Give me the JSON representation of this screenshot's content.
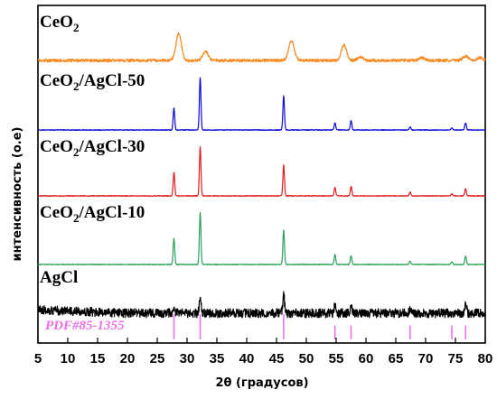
{
  "chart_data": {
    "type": "line",
    "xlabel": "2θ (градусов)",
    "ylabel": "интенсивность (о.е)",
    "xlim": [
      5,
      80
    ],
    "x_ticks": [
      5,
      10,
      15,
      20,
      25,
      30,
      35,
      40,
      45,
      50,
      55,
      60,
      65,
      70,
      75,
      80
    ],
    "grid": false,
    "legend": "labels above each curve",
    "series": [
      {
        "name": "CeO2",
        "label_main": "CeO",
        "label_sub": "2",
        "label_rest": "",
        "color": "#f5891f",
        "noise": 1.6,
        "peaks": [
          {
            "x": 28.6,
            "h": 0.75
          },
          {
            "x": 33.1,
            "h": 0.25
          },
          {
            "x": 47.5,
            "h": 0.55
          },
          {
            "x": 56.3,
            "h": 0.42
          },
          {
            "x": 59.1,
            "h": 0.1
          },
          {
            "x": 69.4,
            "h": 0.08
          },
          {
            "x": 76.7,
            "h": 0.12
          },
          {
            "x": 79.1,
            "h": 0.08
          }
        ]
      },
      {
        "name": "CeO2/AgCl-50",
        "label_main": "CeO",
        "label_sub": "2",
        "label_rest": "/AgCl-50",
        "color": "#0b0bd6",
        "noise": 0.4,
        "peaks": [
          {
            "x": 27.8,
            "h": 0.42
          },
          {
            "x": 32.2,
            "h": 1.0
          },
          {
            "x": 46.2,
            "h": 0.65
          },
          {
            "x": 54.8,
            "h": 0.14
          },
          {
            "x": 57.5,
            "h": 0.18
          },
          {
            "x": 67.4,
            "h": 0.06
          },
          {
            "x": 74.4,
            "h": 0.04
          },
          {
            "x": 76.7,
            "h": 0.14
          }
        ]
      },
      {
        "name": "CeO2/AgCl-30",
        "label_main": "CeO",
        "label_sub": "2",
        "label_rest": "/AgCl-30",
        "color": "#e01a1a",
        "noise": 0.4,
        "peaks": [
          {
            "x": 27.8,
            "h": 0.48
          },
          {
            "x": 32.2,
            "h": 1.0
          },
          {
            "x": 46.2,
            "h": 0.63
          },
          {
            "x": 54.8,
            "h": 0.17
          },
          {
            "x": 57.5,
            "h": 0.19
          },
          {
            "x": 67.4,
            "h": 0.08
          },
          {
            "x": 74.4,
            "h": 0.04
          },
          {
            "x": 76.7,
            "h": 0.15
          }
        ]
      },
      {
        "name": "CeO2/AgCl-10",
        "label_main": "CeO",
        "label_sub": "2",
        "label_rest": "/AgCl-10",
        "color": "#2ca05a",
        "noise": 0.4,
        "peaks": [
          {
            "x": 27.8,
            "h": 0.5
          },
          {
            "x": 32.2,
            "h": 1.0
          },
          {
            "x": 46.2,
            "h": 0.65
          },
          {
            "x": 54.8,
            "h": 0.19
          },
          {
            "x": 57.5,
            "h": 0.17
          },
          {
            "x": 67.4,
            "h": 0.06
          },
          {
            "x": 74.4,
            "h": 0.05
          },
          {
            "x": 76.7,
            "h": 0.16
          }
        ]
      },
      {
        "name": "AgCl",
        "label_main": "AgCl",
        "label_sub": "",
        "label_rest": "",
        "color": "#000000",
        "noise": 5.0,
        "peaks": [
          {
            "x": 27.8,
            "h": 0.18
          },
          {
            "x": 32.2,
            "h": 0.45
          },
          {
            "x": 46.2,
            "h": 0.5
          },
          {
            "x": 54.8,
            "h": 0.2
          },
          {
            "x": 57.5,
            "h": 0.22
          },
          {
            "x": 67.4,
            "h": 0.1
          },
          {
            "x": 76.7,
            "h": 0.3
          }
        ]
      }
    ],
    "reference": {
      "name": "PDF#85-1355",
      "color": "#ee6fe8",
      "lines": [
        {
          "x": 27.8,
          "h": 1.0
        },
        {
          "x": 32.2,
          "h": 1.0
        },
        {
          "x": 46.2,
          "h": 1.0
        },
        {
          "x": 54.8,
          "h": 0.55
        },
        {
          "x": 57.5,
          "h": 0.55
        },
        {
          "x": 67.4,
          "h": 0.55
        },
        {
          "x": 74.4,
          "h": 0.55
        },
        {
          "x": 76.7,
          "h": 0.55
        }
      ]
    }
  }
}
